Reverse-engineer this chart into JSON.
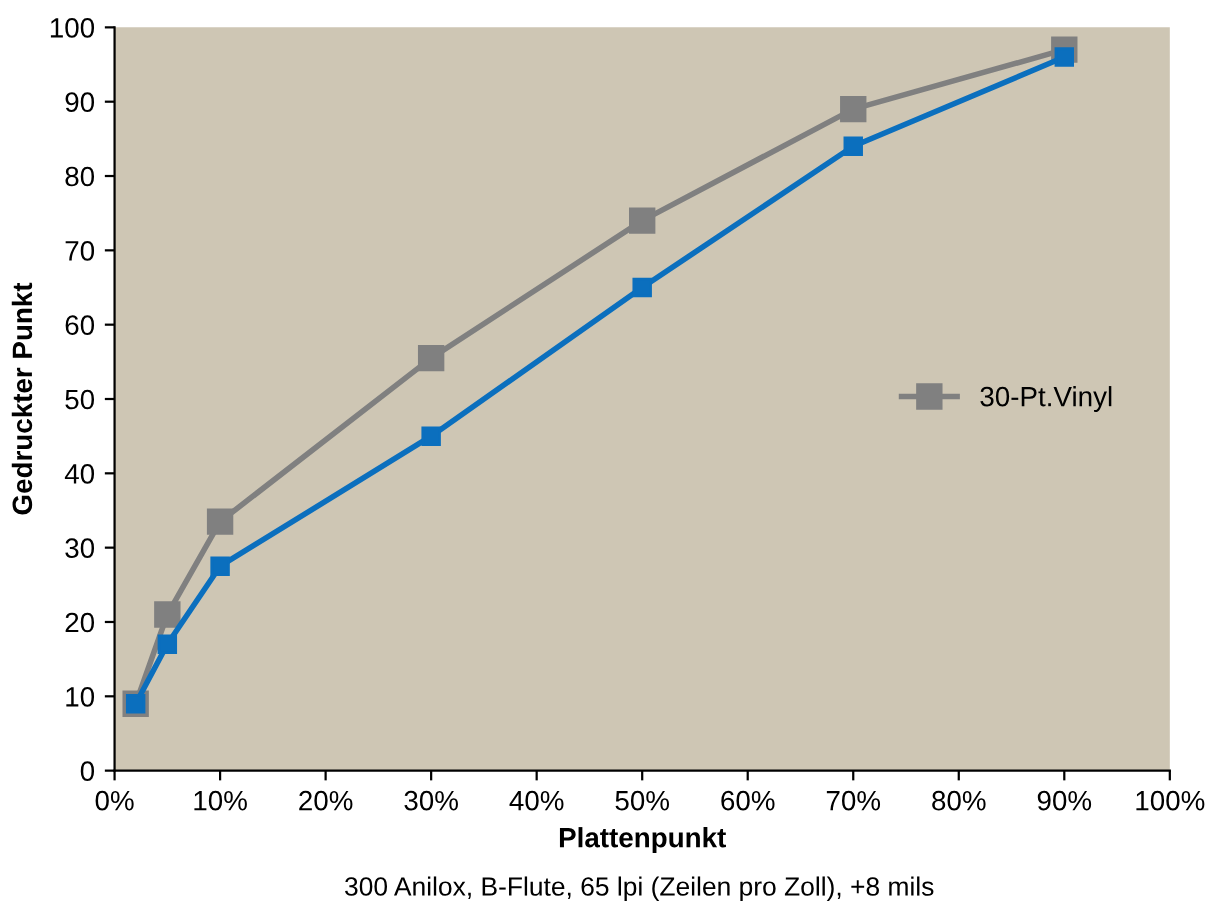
{
  "chart_data": {
    "type": "line",
    "xlabel": "Plattenpunkt",
    "ylabel": "Gedruckter Punkt",
    "annotations": [
      "300 Anilox, B-Flute, 65 lpi (Zeilen pro Zoll), +8 mils"
    ],
    "x": [
      2,
      5,
      10,
      30,
      50,
      70,
      90
    ],
    "series": [
      {
        "name": "30-Pt.Vinyl",
        "color": "#808080",
        "values": [
          9,
          21,
          33.5,
          55.5,
          74,
          89,
          97
        ]
      },
      {
        "color": "#0b6fbe",
        "values": [
          9,
          17,
          27.5,
          45,
          65,
          84,
          96
        ]
      }
    ],
    "xlim": [
      0,
      100
    ],
    "xticks": [
      {
        "value": 0,
        "label": "0%"
      },
      {
        "value": 10,
        "label": "10%"
      },
      {
        "value": 20,
        "label": "20%"
      },
      {
        "value": 30,
        "label": "30%"
      },
      {
        "value": 40,
        "label": "40%"
      },
      {
        "value": 50,
        "label": "50%"
      },
      {
        "value": 60,
        "label": "60%"
      },
      {
        "value": 70,
        "label": "70%"
      },
      {
        "value": 80,
        "label": "80%"
      },
      {
        "value": 90,
        "label": "90%"
      },
      {
        "value": 100,
        "label": "100%"
      }
    ],
    "ylim": [
      0,
      100
    ],
    "yticks": [
      0,
      10,
      20,
      30,
      40,
      50,
      60,
      70,
      80,
      90,
      100
    ],
    "marker": "square",
    "line_style": "solid",
    "legend": "right",
    "grid": false
  }
}
